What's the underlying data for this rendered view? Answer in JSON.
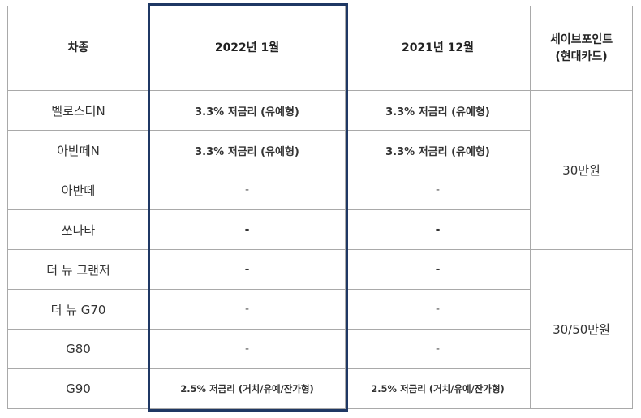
{
  "headers": {
    "model": "차종",
    "jan2022": "2022년 1월",
    "dec2021": "2021년 12월",
    "savepoint_line1": "세이브포인트",
    "savepoint_line2": "(현대카드)"
  },
  "rows": [
    {
      "model": "벨로스터N",
      "jan2022": "3.3% 저금리 (유예형)",
      "dec2021": "3.3% 저금리 (유예형)"
    },
    {
      "model": "아반떼N",
      "jan2022": "3.3% 저금리 (유예형)",
      "dec2021": "3.3% 저금리 (유예형)"
    },
    {
      "model": "아반떼",
      "jan2022": "-",
      "dec2021": "-"
    },
    {
      "model": "쏘나타",
      "jan2022": "-",
      "dec2021": "-"
    },
    {
      "model": "더 뉴 그랜저",
      "jan2022": "-",
      "dec2021": "-"
    },
    {
      "model": "더 뉴 G70",
      "jan2022": "-",
      "dec2021": "-"
    },
    {
      "model": "G80",
      "jan2022": "-",
      "dec2021": "-"
    },
    {
      "model": "G90",
      "jan2022": "2.5% 저금리 (거치/유예/잔가형)",
      "dec2021": "2.5% 저금리 (거치/유예/잔가형)"
    }
  ],
  "savepoints": {
    "group1": "30만원",
    "group2": "30/50만원"
  },
  "highlight_color": "#1f3864"
}
